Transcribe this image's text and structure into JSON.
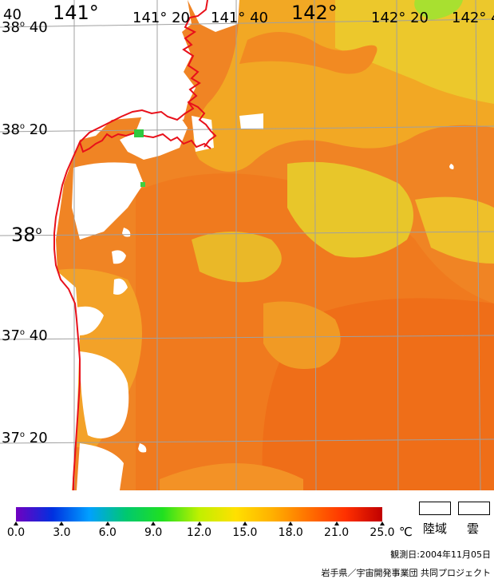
{
  "map": {
    "lat_labels": [
      {
        "deg": "38",
        "min": "40",
        "size": "s"
      },
      {
        "deg": "38",
        "min": "20",
        "size": "s"
      },
      {
        "deg": "38",
        "min": "",
        "size": "l"
      },
      {
        "deg": "37",
        "min": "40",
        "size": "s"
      },
      {
        "deg": "37",
        "min": "20",
        "size": "s"
      }
    ],
    "lon_labels": [
      {
        "text": "40",
        "size": "s"
      },
      {
        "text": "141°",
        "size": "l"
      },
      {
        "text": "141°  20",
        "size": "s"
      },
      {
        "text": "141°  40",
        "size": "s"
      },
      {
        "text": "142°",
        "size": "l"
      },
      {
        "text": "142°  20",
        "size": "s"
      },
      {
        "text": "142°  4",
        "size": "s"
      }
    ],
    "colors": {
      "land": "#ffffff",
      "coastline": "#e8101a",
      "grid": "#a0a0a0",
      "sea_warm": "#f07820",
      "sea_mid": "#f5a020",
      "sea_cool": "#e8d020",
      "sea_cold": "#a8e030"
    }
  },
  "colorbar": {
    "gradient": [
      "#7000c0",
      "#0030e0",
      "#00a0ff",
      "#00c870",
      "#20e020",
      "#c0f000",
      "#ffe000",
      "#ffb000",
      "#ff7000",
      "#ff3000",
      "#c00000"
    ],
    "ticks": [
      "0.0",
      "3.0",
      "6.0",
      "9.0",
      "12.0",
      "15.0",
      "18.0",
      "21.0",
      "25.0"
    ],
    "unit": "℃"
  },
  "legend": {
    "land": "陸域",
    "cloud": "雲"
  },
  "footer": {
    "date": "観測日:2004年11月05日",
    "credit": "岩手県／宇宙開発事業団 共同プロジェクト"
  }
}
